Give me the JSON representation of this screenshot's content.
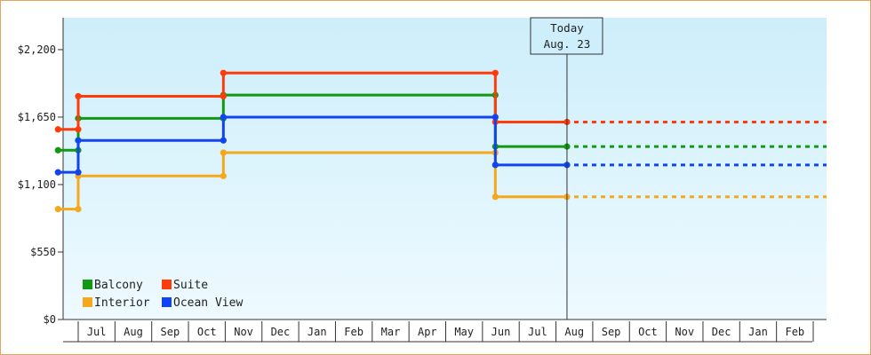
{
  "chart_data": {
    "type": "line",
    "step": true,
    "y_ticks": [
      0,
      550,
      1100,
      1650,
      2200
    ],
    "y_tick_labels": [
      "$0",
      "$550",
      "$1,100",
      "$1,650",
      "$2,200"
    ],
    "ylim": [
      0,
      2460
    ],
    "x_month_labels": [
      "Jul",
      "Aug",
      "Sep",
      "Oct",
      "Nov",
      "Dec",
      "Jan",
      "Feb",
      "Mar",
      "Apr",
      "May",
      "Jun",
      "Jul",
      "Aug",
      "Sep",
      "Oct",
      "Nov",
      "Dec",
      "Jan",
      "Feb"
    ],
    "today": {
      "line1": "Today",
      "line2": "Aug. 23",
      "month_index": 13.3
    },
    "grid": false,
    "legend_position": "bottom-left",
    "series": [
      {
        "name": "Balcony",
        "color": "#119911",
        "points": [
          [
            -0.55,
            1380
          ],
          [
            0,
            1380
          ],
          [
            0,
            1640
          ],
          [
            3.95,
            1640
          ],
          [
            3.95,
            1830
          ],
          [
            11.35,
            1830
          ],
          [
            11.35,
            1410
          ],
          [
            13.3,
            1410
          ]
        ],
        "projection": 1410
      },
      {
        "name": "Suite",
        "color": "#ff3b0a",
        "points": [
          [
            -0.55,
            1550
          ],
          [
            0,
            1550
          ],
          [
            0,
            1820
          ],
          [
            3.95,
            1820
          ],
          [
            3.95,
            2010
          ],
          [
            11.35,
            2010
          ],
          [
            11.35,
            1610
          ],
          [
            13.3,
            1610
          ]
        ],
        "projection": 1610
      },
      {
        "name": "Interior",
        "color": "#f5a81c",
        "points": [
          [
            -0.55,
            900
          ],
          [
            0,
            900
          ],
          [
            0,
            1170
          ],
          [
            3.95,
            1170
          ],
          [
            3.95,
            1360
          ],
          [
            11.35,
            1360
          ],
          [
            11.35,
            1000
          ],
          [
            13.3,
            1000
          ]
        ],
        "projection": 1000
      },
      {
        "name": "Ocean View",
        "color": "#1144ee",
        "points": [
          [
            -0.55,
            1200
          ],
          [
            0,
            1200
          ],
          [
            0,
            1460
          ],
          [
            3.95,
            1460
          ],
          [
            3.95,
            1650
          ],
          [
            11.35,
            1650
          ],
          [
            11.35,
            1260
          ],
          [
            13.3,
            1260
          ]
        ],
        "projection": 1260
      }
    ]
  }
}
